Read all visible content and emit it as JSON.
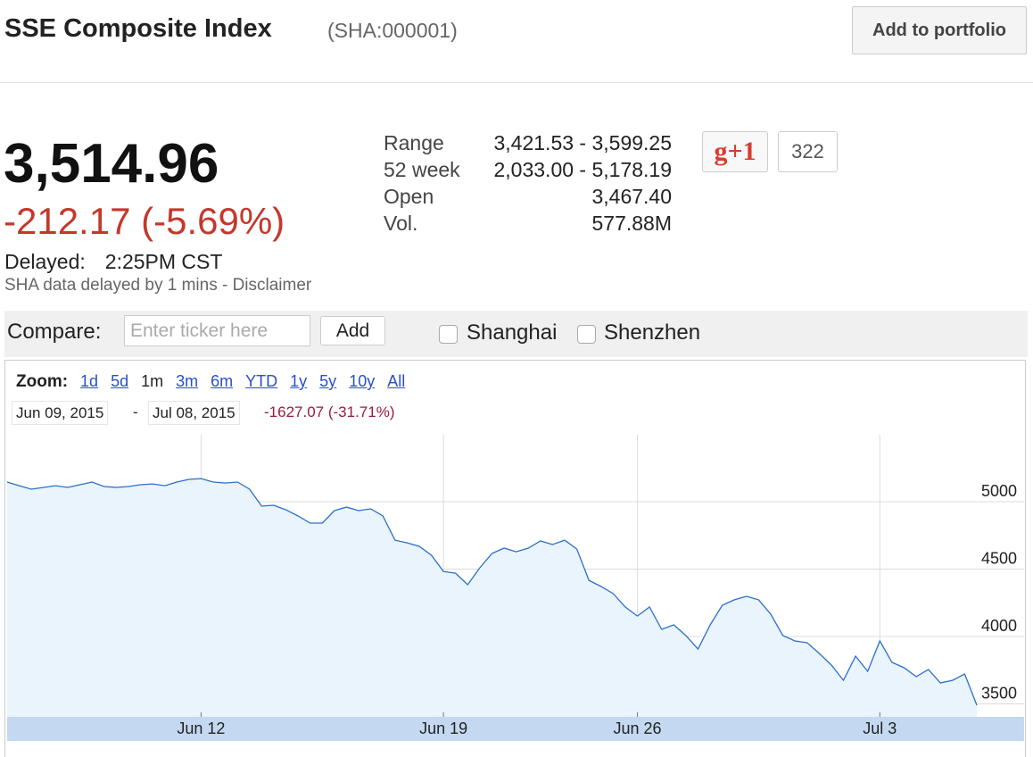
{
  "header": {
    "title": "SSE Composite Index",
    "symbol": "(SHA:000001)",
    "button": "Add to portfolio"
  },
  "quote": {
    "price": "3,514.96",
    "change": "-212.17 (-5.69%)",
    "delayed_label": "Delayed:",
    "delayed_time": "2:25PM CST",
    "disclaimer": "SHA data delayed by 1 mins - Disclaimer"
  },
  "stats": [
    [
      "Range",
      "3,421.53 - 3,599.25"
    ],
    [
      "52 week",
      "2,033.00 - 5,178.19"
    ],
    [
      "Open",
      "3,467.40"
    ],
    [
      "Vol.",
      "577.88M"
    ]
  ],
  "social": {
    "button": "g+1",
    "count": "322"
  },
  "compare": {
    "label": "Compare:",
    "placeholder": "Enter ticker here",
    "button": "Add",
    "options": [
      "Shanghai",
      "Shenzhen"
    ]
  },
  "range_bar": {
    "zoom_label": "Zoom:",
    "zoom_options": [
      "1d",
      "5d",
      "1m",
      "3m",
      "6m",
      "YTD",
      "1y",
      "5y",
      "10y",
      "All"
    ],
    "zoom_selected": "1m",
    "start": "Jun 09, 2015",
    "separator": "-",
    "end": "Jul 08, 2015",
    "change": "-1627.07 (-31.71%)"
  },
  "chart_data": {
    "type": "area",
    "color": "#2c6fc9",
    "fill": "#e9f4fd",
    "grid": true,
    "categories": [
      null,
      null,
      null,
      null,
      null,
      null,
      null,
      null,
      null,
      null,
      null,
      null,
      null,
      null,
      null,
      null,
      "Jun 12",
      null,
      null,
      null,
      null,
      null,
      null,
      null,
      null,
      null,
      null,
      null,
      null,
      null,
      null,
      null,
      null,
      null,
      null,
      null,
      "Jun 19",
      null,
      null,
      null,
      null,
      null,
      null,
      null,
      null,
      null,
      null,
      null,
      null,
      null,
      null,
      null,
      "Jun 26",
      null,
      null,
      null,
      null,
      null,
      null,
      null,
      null,
      null,
      null,
      null,
      null,
      null,
      null,
      null,
      null,
      null,
      null,
      null,
      "Jul 3",
      null,
      null,
      null,
      null,
      null,
      null,
      null,
      null
    ],
    "values": [
      5146,
      5119,
      5093,
      5106,
      5119,
      5106,
      5126,
      5146,
      5113,
      5106,
      5113,
      5126,
      5132,
      5119,
      5146,
      5166,
      5172,
      5146,
      5139,
      5146,
      5093,
      4967,
      4974,
      4940,
      4894,
      4841,
      4841,
      4934,
      4960,
      4934,
      4947,
      4894,
      4715,
      4695,
      4669,
      4603,
      4483,
      4470,
      4384,
      4510,
      4616,
      4656,
      4629,
      4656,
      4709,
      4682,
      4715,
      4649,
      4417,
      4371,
      4318,
      4219,
      4152,
      4219,
      4053,
      4086,
      4007,
      3907,
      4086,
      4232,
      4272,
      4298,
      4272,
      4166,
      4007,
      3967,
      3954,
      3874,
      3788,
      3675,
      3854,
      3742,
      3967,
      3808,
      3768,
      3702,
      3755,
      3656,
      3675,
      3722,
      3490
    ],
    "ylim": [
      3404,
      5497
    ],
    "yticks": [
      3500,
      4000,
      4500,
      5000
    ]
  }
}
